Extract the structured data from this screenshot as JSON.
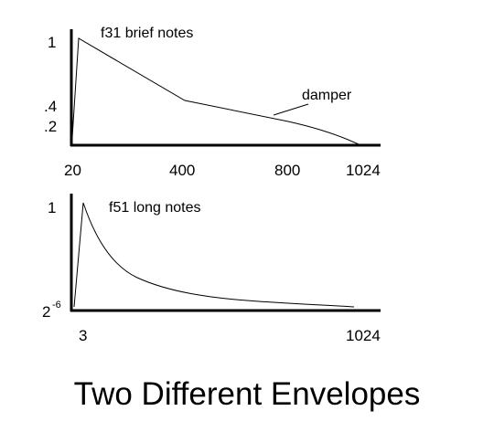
{
  "title": "Two Different Envelopes",
  "colors": {
    "axis": "#000000",
    "curve": "#000000",
    "background": "#ffffff"
  },
  "chart_data": [
    {
      "type": "line",
      "title": "f31 brief notes",
      "annotation": "damper",
      "x_ticks": [
        "20",
        "400",
        "800",
        "1024"
      ],
      "y_ticks": [
        "1",
        ".4",
        ".2"
      ],
      "x": [
        0,
        20,
        400,
        800,
        1024
      ],
      "y": [
        0.0,
        1.0,
        0.4,
        0.2,
        0.0
      ]
    },
    {
      "type": "line",
      "title": "f51 long notes",
      "x_ticks": [
        "3",
        "1024"
      ],
      "y_ticks": [
        "1",
        "2"
      ],
      "y_tick_superscript": "-6",
      "x": [
        0,
        3,
        1024
      ],
      "y_scale": "exponential decay",
      "y": [
        0.0,
        1.0,
        0.0156
      ]
    }
  ]
}
